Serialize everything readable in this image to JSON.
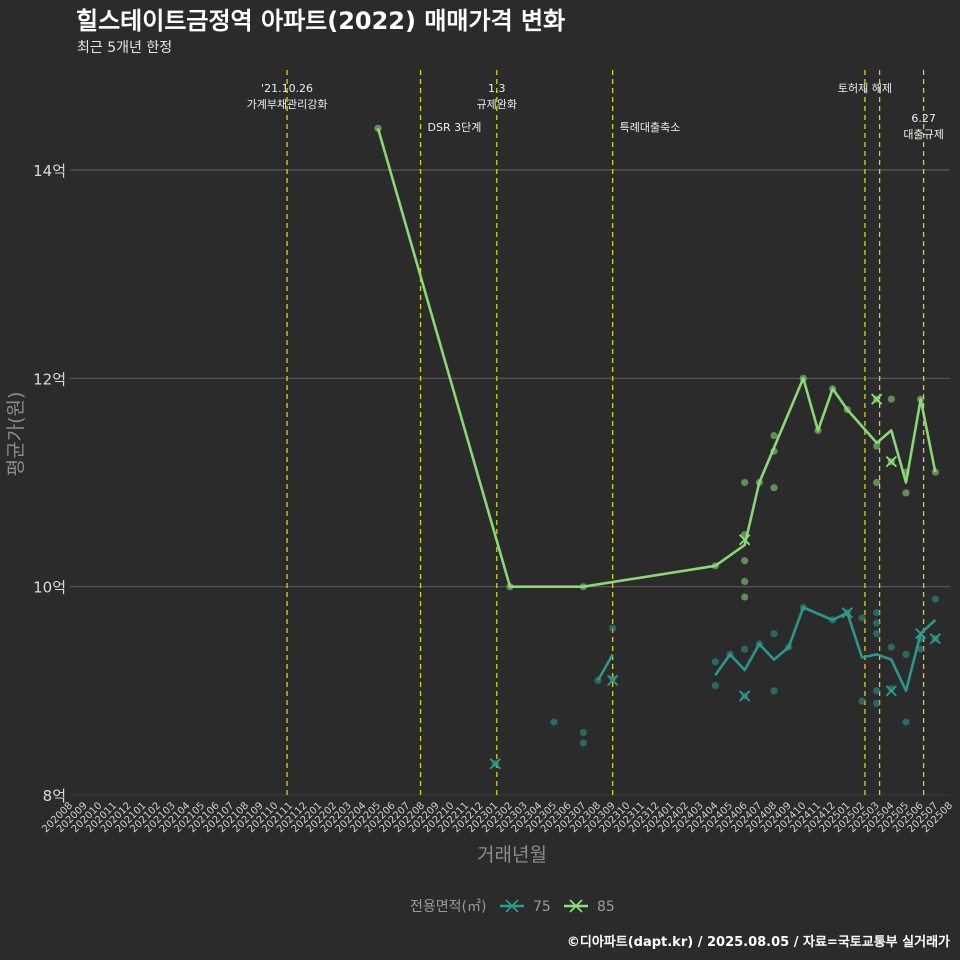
{
  "title": "힐스테이트금정역 아파트(2022) 매매가격 변화",
  "subtitle": "최근 5개년 한정",
  "caption": "©디아파트(dapt.kr) / 2025.08.05 / 자료=국토교통부 실거래가",
  "colors": {
    "s75": "#2a9d8f",
    "s85": "#8fe07a",
    "event": "#d4d41a",
    "background": "#2b2b2b"
  },
  "chart_data": {
    "type": "line",
    "xlabel": "거래년월",
    "ylabel": "평균가(원)",
    "ylim": [
      8,
      14.8
    ],
    "yticks": [
      {
        "v": 8,
        "label": "8억"
      },
      {
        "v": 10,
        "label": "10억"
      },
      {
        "v": 12,
        "label": "12억"
      },
      {
        "v": 14,
        "label": "14억"
      }
    ],
    "months": [
      "202008",
      "202009",
      "202010",
      "202011",
      "202012",
      "202101",
      "202102",
      "202103",
      "202104",
      "202105",
      "202106",
      "202107",
      "202108",
      "202109",
      "202110",
      "202111",
      "202112",
      "202201",
      "202202",
      "202203",
      "202204",
      "202205",
      "202206",
      "202207",
      "202208",
      "202209",
      "202210",
      "202211",
      "202212",
      "202301",
      "202302",
      "202303",
      "202304",
      "202305",
      "202306",
      "202307",
      "202308",
      "202309",
      "202310",
      "202311",
      "202312",
      "202401",
      "202402",
      "202403",
      "202404",
      "202405",
      "202406",
      "202407",
      "202408",
      "202409",
      "202410",
      "202411",
      "202412",
      "202501",
      "202502",
      "202503",
      "202504",
      "202505",
      "202506",
      "202507",
      "202508"
    ],
    "events": [
      {
        "month_index": 14.8,
        "lines": [
          "'21.10.26",
          "가계부채관리강화"
        ],
        "level": 0
      },
      {
        "month_index": 23.9,
        "lines": [
          "DSR 3단계"
        ],
        "level": 1
      },
      {
        "month_index": 29.1,
        "lines": [
          "1.3",
          "규제완화"
        ],
        "level": 0
      },
      {
        "month_index": 37.0,
        "lines": [
          "특례대출축소"
        ],
        "level": 1
      },
      {
        "month_index": 54.2,
        "lines": [
          "토허제 해제"
        ],
        "level": 0
      },
      {
        "month_index": 55.2,
        "lines": [],
        "level": 0
      },
      {
        "month_index": 58.2,
        "lines": [
          "6.27",
          "대출규제"
        ],
        "level": 2
      }
    ],
    "legend": {
      "title": "전용면적(㎡)",
      "items": [
        "75",
        "85"
      ]
    },
    "series": [
      {
        "name": "75",
        "line_segments": [
          [
            [
              36,
              9.1
            ],
            [
              37,
              9.35
            ]
          ],
          [
            [
              44,
              9.15
            ],
            [
              45,
              9.35
            ],
            [
              46,
              9.2
            ],
            [
              47,
              9.45
            ],
            [
              48,
              9.3
            ],
            [
              49,
              9.42
            ],
            [
              50,
              9.8
            ],
            [
              52,
              9.68
            ],
            [
              53,
              9.75
            ],
            [
              54,
              9.32
            ],
            [
              55,
              9.35
            ],
            [
              56,
              9.3
            ],
            [
              57,
              9.0
            ],
            [
              58,
              9.55
            ],
            [
              59,
              9.68
            ]
          ]
        ],
        "points": [
          [
            29,
            8.3
          ],
          [
            33,
            8.7
          ],
          [
            35,
            8.6
          ],
          [
            35,
            8.5
          ],
          [
            36,
            9.1
          ],
          [
            37,
            9.6
          ],
          [
            37,
            9.12
          ],
          [
            44,
            9.28
          ],
          [
            44,
            9.05
          ],
          [
            45,
            9.35
          ],
          [
            46,
            9.4
          ],
          [
            46,
            8.95
          ],
          [
            47,
            9.45
          ],
          [
            48,
            9.55
          ],
          [
            48,
            9.0
          ],
          [
            49,
            9.42
          ],
          [
            50,
            9.8
          ],
          [
            52,
            9.68
          ],
          [
            53,
            9.75
          ],
          [
            54,
            9.7
          ],
          [
            54,
            8.9
          ],
          [
            55,
            9.75
          ],
          [
            55,
            9.65
          ],
          [
            55,
            9.55
          ],
          [
            55,
            9.0
          ],
          [
            55,
            8.88
          ],
          [
            56,
            9.42
          ],
          [
            56,
            9.02
          ],
          [
            57,
            9.35
          ],
          [
            57,
            8.7
          ],
          [
            58,
            9.5
          ],
          [
            58,
            9.4
          ],
          [
            59,
            9.88
          ],
          [
            59,
            9.5
          ]
        ],
        "crosses": [
          [
            29,
            8.3
          ],
          [
            37,
            9.1
          ],
          [
            46,
            8.95
          ],
          [
            53,
            9.75
          ],
          [
            56,
            9.0
          ],
          [
            58,
            9.55
          ],
          [
            59,
            9.5
          ]
        ]
      },
      {
        "name": "85",
        "line_segments": [
          [
            [
              21,
              14.4
            ],
            [
              30,
              10.0
            ],
            [
              35,
              10.0
            ],
            [
              44,
              10.2
            ],
            [
              46,
              10.4
            ],
            [
              47,
              11.0
            ],
            [
              50,
              12.0
            ],
            [
              51,
              11.5
            ],
            [
              52,
              11.9
            ],
            [
              53,
              11.7
            ],
            [
              55,
              11.38
            ],
            [
              56,
              11.5
            ],
            [
              57,
              11.0
            ],
            [
              58,
              11.8
            ],
            [
              59,
              11.1
            ]
          ]
        ],
        "points": [
          [
            21,
            14.4
          ],
          [
            30,
            10.0
          ],
          [
            35,
            10.0
          ],
          [
            44,
            10.2
          ],
          [
            46,
            11.0
          ],
          [
            46,
            10.5
          ],
          [
            46,
            10.25
          ],
          [
            46,
            10.05
          ],
          [
            46,
            9.9
          ],
          [
            47,
            11.0
          ],
          [
            48,
            11.45
          ],
          [
            48,
            11.3
          ],
          [
            48,
            10.95
          ],
          [
            50,
            12.0
          ],
          [
            51,
            11.5
          ],
          [
            52,
            11.9
          ],
          [
            53,
            11.7
          ],
          [
            55,
            11.8
          ],
          [
            55,
            11.35
          ],
          [
            55,
            11.0
          ],
          [
            56,
            11.8
          ],
          [
            56,
            11.2
          ],
          [
            57,
            11.1
          ],
          [
            57,
            10.9
          ],
          [
            58,
            11.8
          ],
          [
            59,
            11.1
          ]
        ],
        "crosses": [
          [
            46,
            10.45
          ],
          [
            55,
            11.8
          ],
          [
            56,
            11.2
          ]
        ]
      }
    ]
  }
}
